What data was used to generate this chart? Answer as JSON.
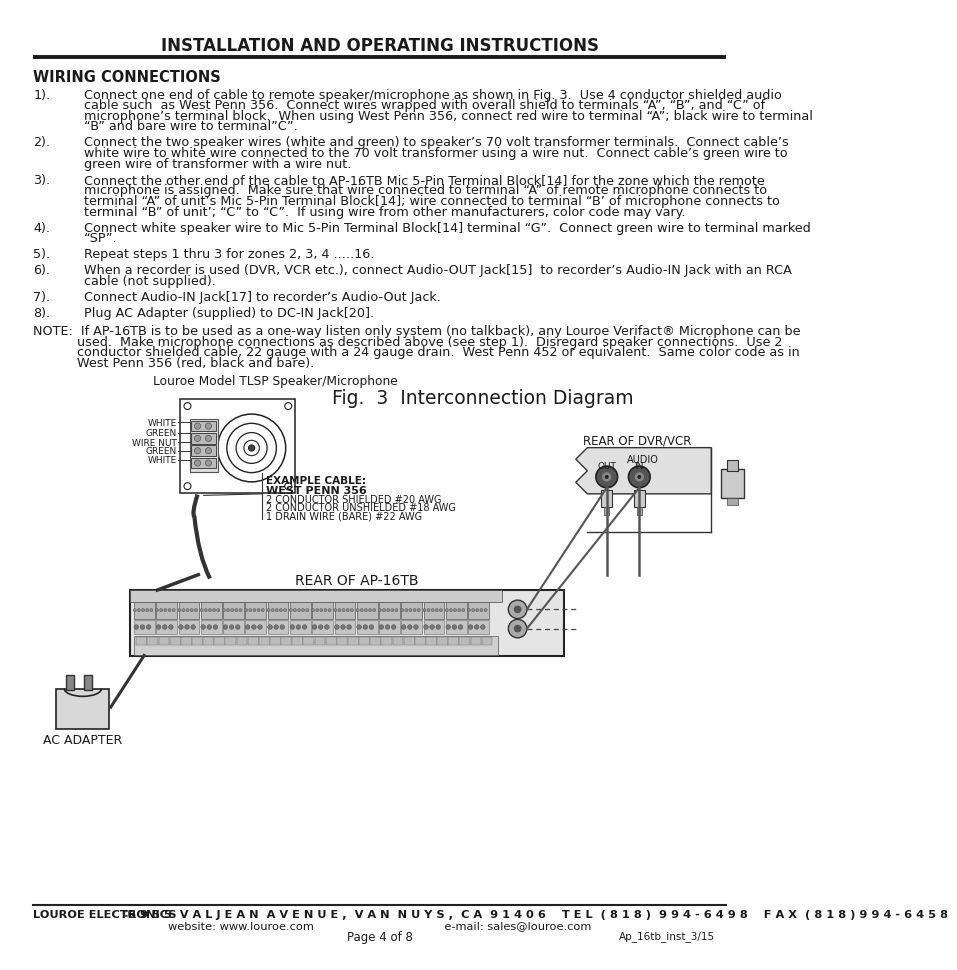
{
  "title": "INSTALLATION AND OPERATING INSTRUCTIONS",
  "section_heading": "WIRING CONNECTIONS",
  "body_text_color": "#1a1a1a",
  "background_color": "#ffffff",
  "footer_line1_left": "LOUROE ELECTRONICS",
  "footer_line1_main": "6 9 5 5  V A L J E A N  A V E N U E ,  V A N  N U Y S ,  C A  9 1 4 0 6    T E L  ( 8 1 8 )  9 9 4 - 6 4 9 8    F A X  ( 8 1 8 ) 9 9 4 - 6 4 5 8",
  "footer_line2": "website: www.louroe.com                                    e-mail: sales@louroe.com",
  "footer_line3": "Page 4 of 8",
  "footer_ref": "Ap_16tb_inst_3/15",
  "items": [
    {
      "num": "1).",
      "text": "Connect one end of cable to remote speaker/microphone as shown in Fig. 3.  Use 4 conductor shielded audio\ncable such  as West Penn 356.  Connect wires wrapped with overall shield to terminals “A”, “B”, and “C” of\nmicrophone’s terminal block.  When using West Penn 356, connect red wire to terminal “A”; black wire to terminal\n“B” and bare wire to terminal”C”."
    },
    {
      "num": "2).",
      "text": "Connect the two speaker wires (white and green) to speaker’s 70 volt transformer terminals.  Connect cable’s\nwhite wire to white wire connected to the 70 volt transformer using a wire nut.  Connect cable’s green wire to\ngreen wire of transformer with a wire nut."
    },
    {
      "num": "3).",
      "text": "Connect the other end of the cable to AP-16TB Mic 5-Pin Terminal Block[14] for the zone which the remote\nmicrophone is assigned.  Make sure that wire connected to terminal “A” of remote microphone connects to\nterminal “A” of unit’s Mic 5-Pin Terminal Block[14]; wire connected to terminal “B’ of microphone connects to\nterminal “B” of unit’; “C” to “C”.  If using wire from other manufacturers, color code may vary."
    },
    {
      "num": "4).",
      "text": "Connect white speaker wire to Mic 5-Pin Terminal Block[14] terminal “G”.  Connect green wire to terminal marked\n“SP”."
    },
    {
      "num": "5).",
      "text": "Repeat steps 1 thru 3 for zones 2, 3, 4 .....16."
    },
    {
      "num": "6).",
      "text": "When a recorder is used (DVR, VCR etc.), connect Audio-OUT Jack[15]  to recorder’s Audio-IN Jack with an RCA\ncable (not supplied)."
    },
    {
      "num": "7).",
      "text": "Connect Audio-IN Jack[17] to recorder’s Audio-Out Jack."
    },
    {
      "num": "8).",
      "text": "Plug AC Adapter (supplied) to DC-IN Jack[20]."
    }
  ],
  "note_text": "NOTE:  If AP-16TB is to be used as a one-way listen only system (no talkback), any Louroe Verifact® Microphone can be\n           used.  Make microphone connections as described above (see step 1).  Disregard speaker connections.  Use 2\n           conductor shielded cable, 22 gauge with a 24 gauge drain.  West Penn 452 or equivalent.  Same color code as in\n           West Penn 356 (red, black and bare).",
  "diagram_caption": "Louroe Model TLSP Speaker/Microphone",
  "fig_title": "Fig.  3  Interconnection Diagram",
  "wire_labels": [
    "WHITE",
    "GREEN",
    "WIRE NUT",
    "GREEN",
    "WHITE"
  ],
  "example_cable_title": "EXAMPLE CABLE:",
  "example_cable_name": "WEST PENN 356",
  "example_cable_lines": [
    "2 CONDUCTOR SHIELDED #20 AWG",
    "2 CONDUCTOR UNSHIELDED #18 AWG",
    "1 DRAIN WIRE (BARE) #22 AWG"
  ],
  "rear_ap_label": "REAR OF AP-16TB",
  "rear_dvr_label": "REAR OF DVR/VCR",
  "audio_label": "AUDIO",
  "out_label": "OUT",
  "in_label": "IN",
  "ac_adapter_label": "AC ADAPTER",
  "text_fontsize": 9.2,
  "bold_bracket_items": [
    "[14]",
    "[15]",
    "[17]",
    "[20]"
  ]
}
